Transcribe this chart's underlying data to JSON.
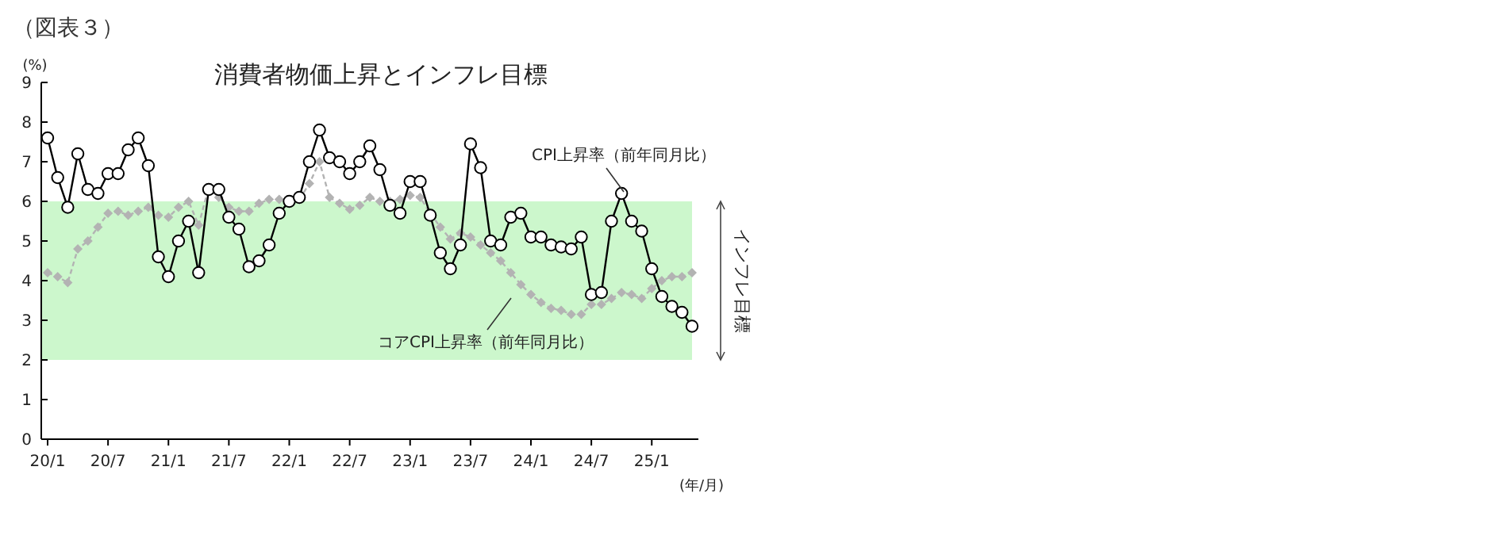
{
  "chart_data": {
    "type": "line",
    "title": "消費者物価上昇とインフレ目標",
    "ylabel": "(%)",
    "xlabel": "(年/月)",
    "annotations": [
      "（図表３）",
      "CPI上昇率（前年同月比）",
      "コアCPI上昇率（前年同月比）"
    ],
    "categories": [
      "20/1",
      null,
      null,
      null,
      null,
      null,
      "20/7",
      null,
      null,
      null,
      null,
      null,
      "21/1",
      null,
      null,
      null,
      null,
      null,
      "21/7",
      null,
      null,
      null,
      null,
      null,
      "22/1",
      null,
      null,
      null,
      null,
      null,
      "22/7",
      null,
      null,
      null,
      null,
      null,
      "23/1",
      null,
      null,
      null,
      null,
      null,
      "23/7",
      null,
      null,
      null,
      null,
      null,
      "24/1",
      null,
      null,
      null,
      null,
      null,
      "24/7",
      null,
      null,
      null,
      null,
      null,
      "25/1",
      null,
      null,
      null,
      null
    ],
    "series": [
      {
        "color": "#b3b3b3",
        "marker": "diamond",
        "line_style": "dashed",
        "values": [
          4.2,
          4.1,
          3.95,
          4.8,
          5.0,
          5.35,
          5.7,
          5.75,
          5.65,
          5.75,
          5.85,
          5.65,
          5.6,
          5.85,
          6.0,
          5.4,
          6.35,
          6.1,
          5.85,
          5.75,
          5.75,
          5.95,
          6.05,
          6.05,
          6.0,
          6.05,
          6.45,
          7.0,
          6.1,
          5.95,
          5.8,
          5.9,
          6.1,
          6.0,
          6.0,
          6.05,
          6.15,
          6.1,
          5.7,
          5.35,
          5.05,
          5.2,
          5.1,
          4.9,
          4.7,
          4.5,
          4.2,
          3.9,
          3.65,
          3.45,
          3.3,
          3.25,
          3.15,
          3.15,
          3.4,
          3.4,
          3.55,
          3.7,
          3.65,
          3.55,
          3.8,
          4.0,
          4.1,
          4.1,
          4.2
        ]
      },
      {
        "color": "#000000",
        "marker": "circle",
        "line_style": "solid",
        "values": [
          7.6,
          6.6,
          5.85,
          7.2,
          6.3,
          6.2,
          6.7,
          6.7,
          7.3,
          7.6,
          6.9,
          4.6,
          4.1,
          5.0,
          5.5,
          4.2,
          6.3,
          6.3,
          5.6,
          5.3,
          4.35,
          4.5,
          4.9,
          5.7,
          6.0,
          6.1,
          7.0,
          7.8,
          7.1,
          7.0,
          6.7,
          7.0,
          7.4,
          6.8,
          5.9,
          5.7,
          6.5,
          6.5,
          5.65,
          4.7,
          4.3,
          4.9,
          7.45,
          6.85,
          5.0,
          4.9,
          5.6,
          5.7,
          5.1,
          5.1,
          4.9,
          4.85,
          4.8,
          5.1,
          3.65,
          3.7,
          5.5,
          6.2,
          5.5,
          5.25,
          4.3,
          3.6,
          3.35,
          3.2,
          2.85
        ]
      }
    ],
    "ylim": [
      0,
      9
    ],
    "yticks": [
      0,
      1,
      2,
      3,
      4,
      5,
      6,
      7,
      8,
      9
    ],
    "grid": false,
    "bands": [
      {
        "axis": "y",
        "from": 2,
        "to": 6,
        "label": "インフレ目標",
        "color": "#ccf7cc"
      }
    ]
  }
}
